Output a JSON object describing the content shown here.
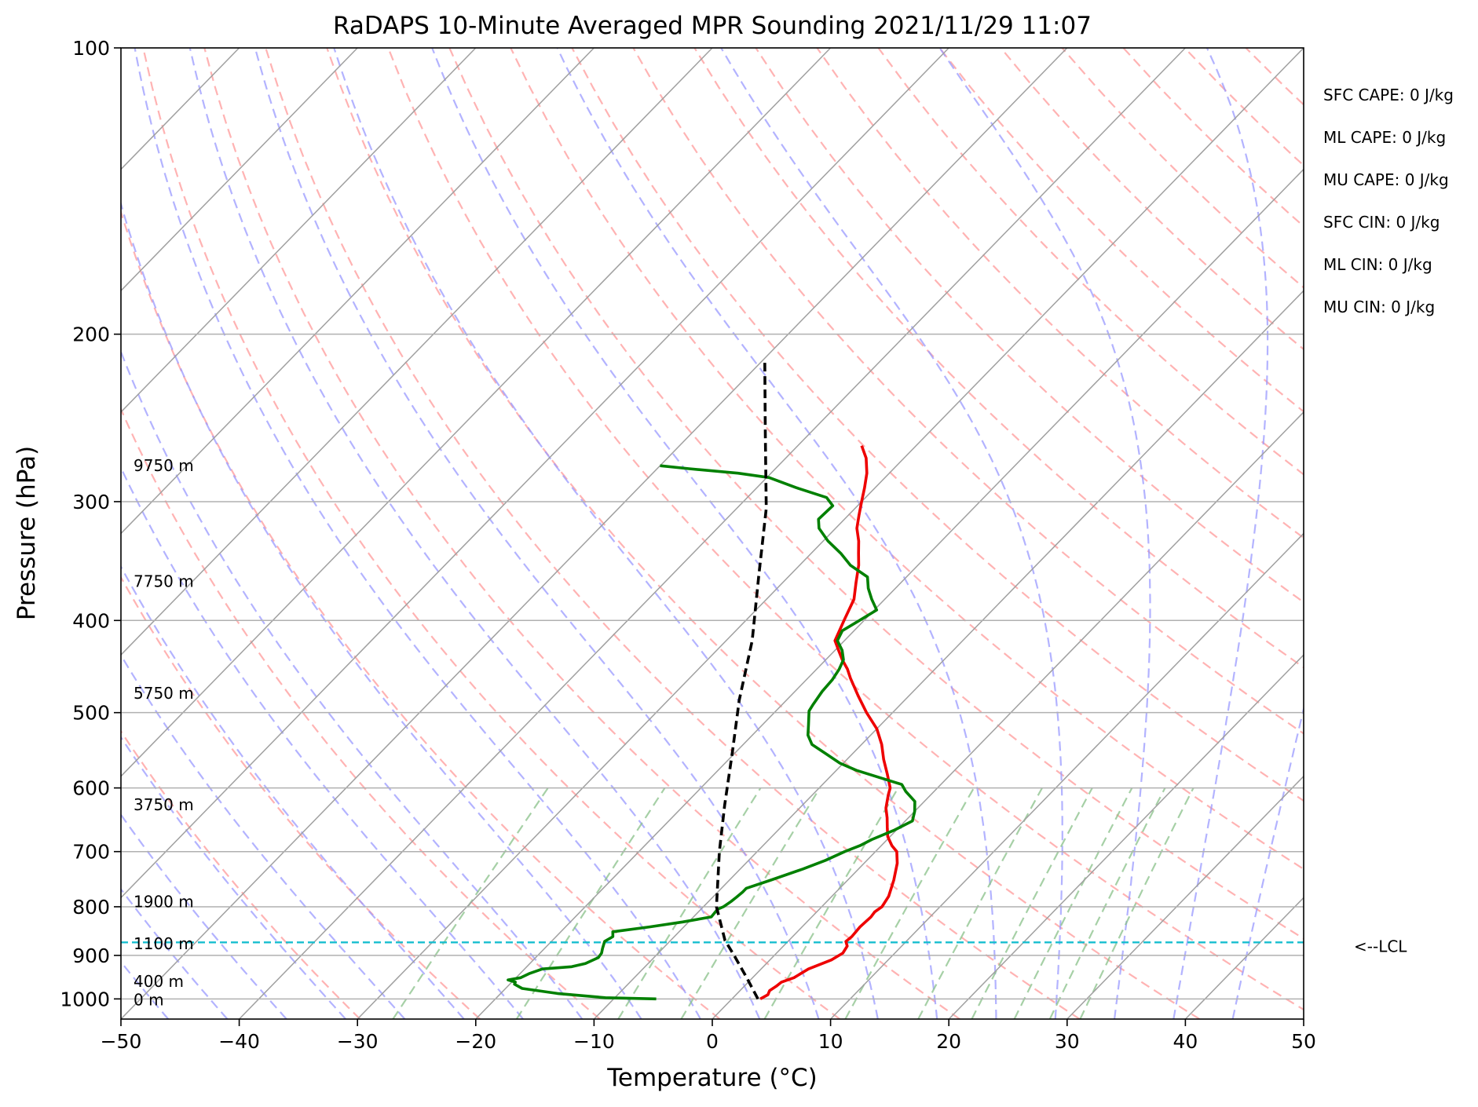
{
  "chart_data": {
    "type": "line",
    "subtype": "skew-t",
    "title": "RaDAPS 10-Minute Averaged MPR Sounding 2021/11/29 11:07",
    "xlabel": "Temperature (°C)",
    "ylabel": "Pressure (hPa)",
    "xlim": [
      -50,
      50
    ],
    "ylim": [
      1050,
      100
    ],
    "y_scale": "log",
    "grid": true,
    "x_ticks": [
      -50,
      -40,
      -30,
      -20,
      -10,
      0,
      10,
      20,
      30,
      40,
      50
    ],
    "x_tick_labels": [
      "−50",
      "−40",
      "−30",
      "−20",
      "−10",
      "0",
      "10",
      "20",
      "30",
      "40",
      "50"
    ],
    "y_ticks": [
      100,
      200,
      300,
      400,
      500,
      600,
      700,
      800,
      900,
      1000
    ],
    "y_tick_labels": [
      "100",
      "200",
      "300",
      "400",
      "500",
      "600",
      "700",
      "800",
      "900",
      "1000"
    ],
    "series": [
      {
        "color": "#ee0000",
        "points": [
          [
            2.4,
            1000
          ],
          [
            2.7,
            990
          ],
          [
            2.5,
            980
          ],
          [
            2.7,
            970
          ],
          [
            2.8,
            960
          ],
          [
            3.5,
            950
          ],
          [
            4,
            930
          ],
          [
            5.2,
            910
          ],
          [
            5.6,
            895
          ],
          [
            5.4,
            880
          ],
          [
            4.9,
            870
          ],
          [
            5,
            860
          ],
          [
            4.9,
            840
          ],
          [
            5,
            820
          ],
          [
            4.9,
            810
          ],
          [
            5.1,
            800
          ],
          [
            4.8,
            780
          ],
          [
            3.9,
            750
          ],
          [
            2.8,
            720
          ],
          [
            1.8,
            700
          ],
          [
            0.9,
            690
          ],
          [
            -0.2,
            675
          ],
          [
            -1,
            660
          ],
          [
            -1.8,
            645
          ],
          [
            -2.7,
            630
          ],
          [
            -3.6,
            610
          ],
          [
            -4,
            600
          ],
          [
            -5.4,
            580
          ],
          [
            -6.9,
            560
          ],
          [
            -8.3,
            540
          ],
          [
            -10,
            520
          ],
          [
            -12.2,
            500
          ],
          [
            -14.3,
            480
          ],
          [
            -16.4,
            460
          ],
          [
            -17.4,
            450
          ],
          [
            -18.6,
            440
          ],
          [
            -19.7,
            430
          ],
          [
            -20.8,
            420
          ],
          [
            -21.7,
            400
          ],
          [
            -22.6,
            380
          ],
          [
            -23.8,
            365
          ],
          [
            -25,
            350
          ],
          [
            -26,
            340
          ],
          [
            -27,
            330
          ],
          [
            -28.2,
            320
          ],
          [
            -29.1,
            310
          ],
          [
            -30,
            300
          ],
          [
            -30.9,
            290
          ],
          [
            -31.9,
            280
          ],
          [
            -33.2,
            270
          ],
          [
            -34.6,
            262
          ]
        ]
      },
      {
        "color": "#008000",
        "points": [
          [
            -6.4,
            1000
          ],
          [
            -10.8,
            997
          ],
          [
            -15.2,
            987
          ],
          [
            -18.6,
            975
          ],
          [
            -19.6,
            965
          ],
          [
            -19.7,
            960
          ],
          [
            -20.5,
            955
          ],
          [
            -19.6,
            950
          ],
          [
            -19.2,
            940
          ],
          [
            -18.5,
            930
          ],
          [
            -16.2,
            925
          ],
          [
            -15.3,
            918
          ],
          [
            -14.7,
            905
          ],
          [
            -14.8,
            895
          ],
          [
            -15.1,
            885
          ],
          [
            -15.5,
            870
          ],
          [
            -15.2,
            860
          ],
          [
            -15.6,
            850
          ],
          [
            -12.9,
            840
          ],
          [
            -10.5,
            830
          ],
          [
            -8.5,
            820
          ],
          [
            -8.6,
            805
          ],
          [
            -8.3,
            800
          ],
          [
            -8.1,
            790
          ],
          [
            -8,
            782
          ],
          [
            -7.9,
            772
          ],
          [
            -7.9,
            765
          ],
          [
            -6.5,
            750
          ],
          [
            -4.7,
            730
          ],
          [
            -3.5,
            715
          ],
          [
            -2.6,
            700
          ],
          [
            -1.8,
            690
          ],
          [
            -1.3,
            680
          ],
          [
            -0.2,
            665
          ],
          [
            0.6,
            650
          ],
          [
            0,
            635
          ],
          [
            -0.8,
            620
          ],
          [
            -2.4,
            605
          ],
          [
            -3.3,
            595
          ],
          [
            -8.3,
            575
          ],
          [
            -10.3,
            565
          ],
          [
            -12.3,
            552
          ],
          [
            -14.2,
            540
          ],
          [
            -15.3,
            528
          ],
          [
            -16.1,
            515
          ],
          [
            -17.2,
            498
          ],
          [
            -17.4,
            490
          ],
          [
            -17.7,
            475
          ],
          [
            -17.8,
            462
          ],
          [
            -18.1,
            450
          ],
          [
            -18.5,
            440
          ],
          [
            -19.4,
            430
          ],
          [
            -20.6,
            420
          ],
          [
            -21,
            410
          ],
          [
            -20.4,
            400
          ],
          [
            -19.8,
            390
          ],
          [
            -21.1,
            380
          ],
          [
            -22.3,
            370
          ],
          [
            -23.3,
            360
          ],
          [
            -25.7,
            350
          ],
          [
            -27.5,
            340
          ],
          [
            -29.6,
            330
          ],
          [
            -31.4,
            320
          ],
          [
            -32.2,
            313
          ],
          [
            -32.1,
            303
          ],
          [
            -33.3,
            297
          ],
          [
            -36.7,
            290
          ],
          [
            -39.8,
            283
          ],
          [
            -42.8,
            280
          ],
          [
            -47.3,
            277
          ],
          [
            -50,
            275
          ]
        ]
      },
      {
        "color": "#000000",
        "dashed": true,
        "points": [
          [
            2.2,
            1000
          ],
          [
            -0.5,
            950
          ],
          [
            -3.4,
            900
          ],
          [
            -5.4,
            868
          ],
          [
            -8.9,
            800
          ],
          [
            -13.2,
            700
          ],
          [
            -16.6,
            625
          ],
          [
            -20.3,
            550
          ],
          [
            -24,
            485
          ],
          [
            -27.8,
            420
          ],
          [
            -32.5,
            360
          ],
          [
            -37.5,
            305
          ],
          [
            -43.8,
            254
          ],
          [
            -50,
            212
          ]
        ]
      }
    ],
    "lcl_pressure": 872,
    "lcl_label": "<--LCL",
    "height_labels": [
      {
        "label": "0 m",
        "pressure": 1002
      },
      {
        "label": "400 m",
        "pressure": 958
      },
      {
        "label": "1100 m",
        "pressure": 875
      },
      {
        "label": "1900 m",
        "pressure": 790
      },
      {
        "label": "3750 m",
        "pressure": 625
      },
      {
        "label": "5750 m",
        "pressure": 477
      },
      {
        "label": "7750 m",
        "pressure": 364
      },
      {
        "label": "9750 m",
        "pressure": 275
      }
    ],
    "annotations": [
      "SFC CAPE: 0 J/kg",
      "ML CAPE: 0 J/kg",
      "MU CAPE: 0 J/kg",
      "SFC CIN: 0 J/kg",
      "ML CIN: 0 J/kg",
      "MU CIN: 0 J/kg"
    ],
    "background_lines": {
      "isotherms": {
        "color": "#a0a0a0"
      },
      "dry_adiabats": {
        "color": "#ff9999"
      },
      "moist_adiabats": {
        "color": "#9999ff"
      },
      "mixing_ratio": {
        "color": "#88c088"
      }
    },
    "colors": {
      "temperature": "#ee0000",
      "dewpoint": "#008000",
      "parcel": "#000000",
      "lcl_line": "#17becf"
    }
  }
}
